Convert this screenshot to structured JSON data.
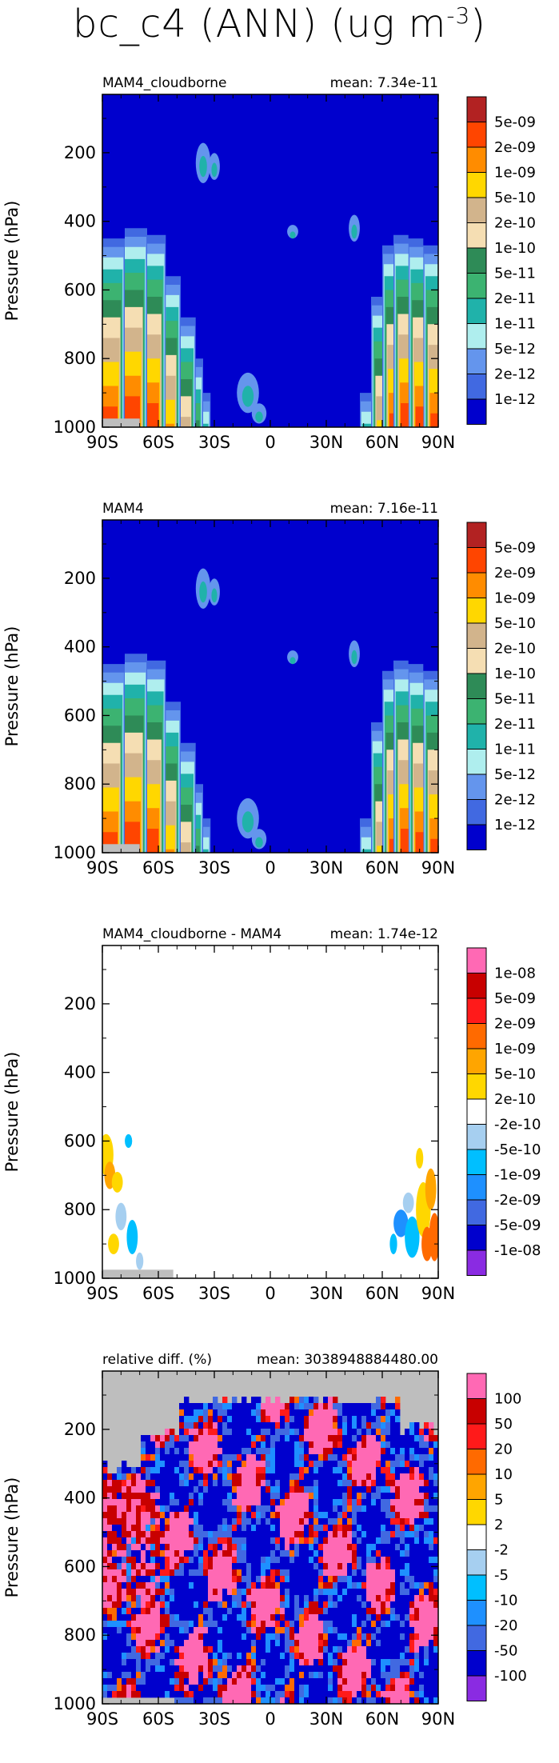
{
  "figure": {
    "variable": "bc_c4",
    "season": "(ANN)",
    "units_prefix": "(ug m",
    "units_exp": "-3",
    "units_suffix": ")"
  },
  "chart_data": [
    {
      "type": "heatmap",
      "panel_label": "MAM4_cloudborne",
      "mean_label": "mean: 7.34e-11",
      "ylabel": "Pressure (hPa)",
      "x_ticks": [
        "90S",
        "60S",
        "30S",
        "0",
        "30N",
        "60N",
        "90N"
      ],
      "y_ticks": [
        "200",
        "400",
        "600",
        "800",
        "1000"
      ],
      "xlim": [
        -90,
        90
      ],
      "ylim": [
        1000,
        30
      ],
      "colorbar": {
        "labels": [
          "5e-09",
          "2e-09",
          "1e-09",
          "5e-10",
          "2e-10",
          "1e-10",
          "5e-11",
          "2e-11",
          "1e-11",
          "5e-12",
          "2e-12",
          "1e-12"
        ],
        "colors": [
          "#b22222",
          "#ff4500",
          "#ff8c00",
          "#ffd700",
          "#d2b48c",
          "#f5deb3",
          "#2e8b57",
          "#3cb371",
          "#20b2aa",
          "#afeeee",
          "#6495ed",
          "#4169e1",
          "#0000cd"
        ]
      },
      "background": "#0000cd"
    },
    {
      "type": "heatmap",
      "panel_label": "MAM4",
      "mean_label": "mean: 7.16e-11",
      "ylabel": "Pressure (hPa)",
      "x_ticks": [
        "90S",
        "60S",
        "30S",
        "0",
        "30N",
        "60N",
        "90N"
      ],
      "y_ticks": [
        "200",
        "400",
        "600",
        "800",
        "1000"
      ],
      "xlim": [
        -90,
        90
      ],
      "ylim": [
        1000,
        30
      ],
      "colorbar": {
        "labels": [
          "5e-09",
          "2e-09",
          "1e-09",
          "5e-10",
          "2e-10",
          "1e-10",
          "5e-11",
          "2e-11",
          "1e-11",
          "5e-12",
          "2e-12",
          "1e-12"
        ],
        "colors": [
          "#b22222",
          "#ff4500",
          "#ff8c00",
          "#ffd700",
          "#d2b48c",
          "#f5deb3",
          "#2e8b57",
          "#3cb371",
          "#20b2aa",
          "#afeeee",
          "#6495ed",
          "#4169e1",
          "#0000cd"
        ]
      },
      "background": "#0000cd"
    },
    {
      "type": "heatmap",
      "panel_label": "MAM4_cloudborne - MAM4",
      "mean_label": "mean: 1.74e-12",
      "ylabel": "Pressure (hPa)",
      "x_ticks": [
        "90S",
        "60S",
        "30S",
        "0",
        "30N",
        "60N",
        "90N"
      ],
      "y_ticks": [
        "200",
        "400",
        "600",
        "800",
        "1000"
      ],
      "xlim": [
        -90,
        90
      ],
      "ylim": [
        1000,
        30
      ],
      "colorbar": {
        "labels": [
          "1e-08",
          "5e-09",
          "2e-09",
          "1e-09",
          "5e-10",
          "2e-10",
          "-2e-10",
          "-5e-10",
          "-1e-09",
          "-2e-09",
          "-5e-09",
          "-1e-08"
        ],
        "colors": [
          "#ff69b4",
          "#c80000",
          "#ff1a1a",
          "#ff6a00",
          "#ffa500",
          "#ffd700",
          "#ffffff",
          "#a6cff0",
          "#00bfff",
          "#1e90ff",
          "#4169e1",
          "#0000cd",
          "#8a2be2"
        ]
      },
      "background": "#ffffff"
    },
    {
      "type": "heatmap",
      "panel_label": "relative diff. (%)",
      "mean_label": "mean: 3038948884480.00",
      "ylabel": "Pressure (hPa)",
      "x_ticks": [
        "90S",
        "60S",
        "30S",
        "0",
        "30N",
        "60N",
        "90N"
      ],
      "y_ticks": [
        "200",
        "400",
        "600",
        "800",
        "1000"
      ],
      "xlim": [
        -90,
        90
      ],
      "ylim": [
        1000,
        30
      ],
      "colorbar": {
        "labels": [
          "100",
          "50",
          "20",
          "10",
          "5",
          "2",
          "-2",
          "-5",
          "-10",
          "-20",
          "-50",
          "-100"
        ],
        "colors": [
          "#ff69b4",
          "#c80000",
          "#ff1a1a",
          "#ff6a00",
          "#ffa500",
          "#ffd700",
          "#ffffff",
          "#a6cff0",
          "#00bfff",
          "#1e90ff",
          "#4169e1",
          "#0000cd",
          "#8a2be2"
        ]
      },
      "background": "#0000cd"
    }
  ]
}
